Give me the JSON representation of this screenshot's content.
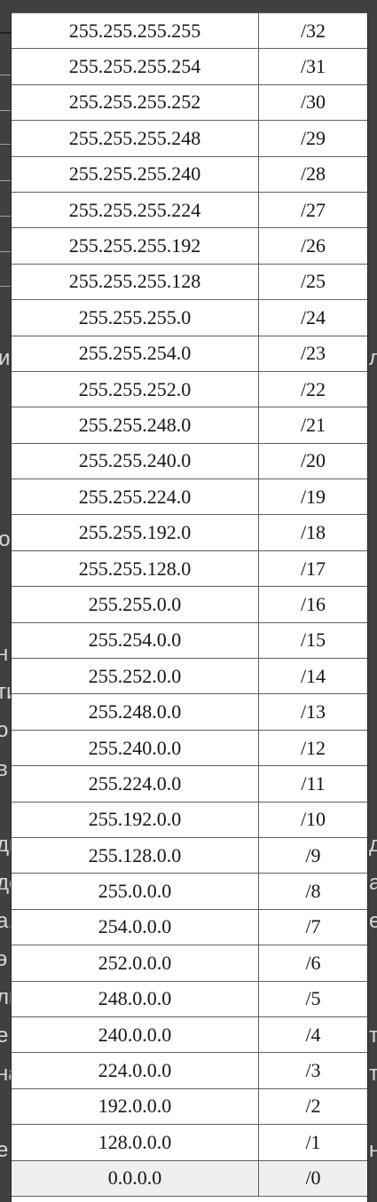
{
  "table": {
    "rows": [
      {
        "mask": "255.255.255.255",
        "prefix": "/32"
      },
      {
        "mask": "255.255.255.254",
        "prefix": "/31"
      },
      {
        "mask": "255.255.255.252",
        "prefix": "/30"
      },
      {
        "mask": "255.255.255.248",
        "prefix": "/29"
      },
      {
        "mask": "255.255.255.240",
        "prefix": "/28"
      },
      {
        "mask": "255.255.255.224",
        "prefix": "/27"
      },
      {
        "mask": "255.255.255.192",
        "prefix": "/26"
      },
      {
        "mask": "255.255.255.128",
        "prefix": "/25"
      },
      {
        "mask": "255.255.255.0",
        "prefix": "/24"
      },
      {
        "mask": "255.255.254.0",
        "prefix": "/23"
      },
      {
        "mask": "255.255.252.0",
        "prefix": "/22"
      },
      {
        "mask": "255.255.248.0",
        "prefix": "/21"
      },
      {
        "mask": "255.255.240.0",
        "prefix": "/20"
      },
      {
        "mask": "255.255.224.0",
        "prefix": "/19"
      },
      {
        "mask": "255.255.192.0",
        "prefix": "/18"
      },
      {
        "mask": "255.255.128.0",
        "prefix": "/17"
      },
      {
        "mask": "255.255.0.0",
        "prefix": "/16"
      },
      {
        "mask": "255.254.0.0",
        "prefix": "/15"
      },
      {
        "mask": "255.252.0.0",
        "prefix": "/14"
      },
      {
        "mask": "255.248.0.0",
        "prefix": "/13"
      },
      {
        "mask": "255.240.0.0",
        "prefix": "/12"
      },
      {
        "mask": "255.224.0.0",
        "prefix": "/11"
      },
      {
        "mask": "255.192.0.0",
        "prefix": "/10"
      },
      {
        "mask": "255.128.0.0",
        "prefix": "/9"
      },
      {
        "mask": "255.0.0.0",
        "prefix": "/8"
      },
      {
        "mask": "254.0.0.0",
        "prefix": "/7"
      },
      {
        "mask": "252.0.0.0",
        "prefix": "/6"
      },
      {
        "mask": "248.0.0.0",
        "prefix": "/5"
      },
      {
        "mask": "240.0.0.0",
        "prefix": "/4"
      },
      {
        "mask": "224.0.0.0",
        "prefix": "/3"
      },
      {
        "mask": "192.0.0.0",
        "prefix": "/2"
      },
      {
        "mask": "128.0.0.0",
        "prefix": "/1"
      },
      {
        "mask": "0.0.0.0",
        "prefix": "/0"
      }
    ]
  },
  "background": {
    "left_fragments": [
      "и",
      "го",
      "н",
      "ти",
      "о",
      "в",
      "дн",
      "до",
      "а,",
      "э",
      "ль",
      "е",
      "на",
      "е"
    ],
    "right_fragments": [
      "л",
      "д",
      "а",
      "е",
      "т",
      "т",
      "н"
    ]
  },
  "colors": {
    "page_background": "#404040",
    "table_background": "#ffffff",
    "last_row_background": "#efefef"
  }
}
